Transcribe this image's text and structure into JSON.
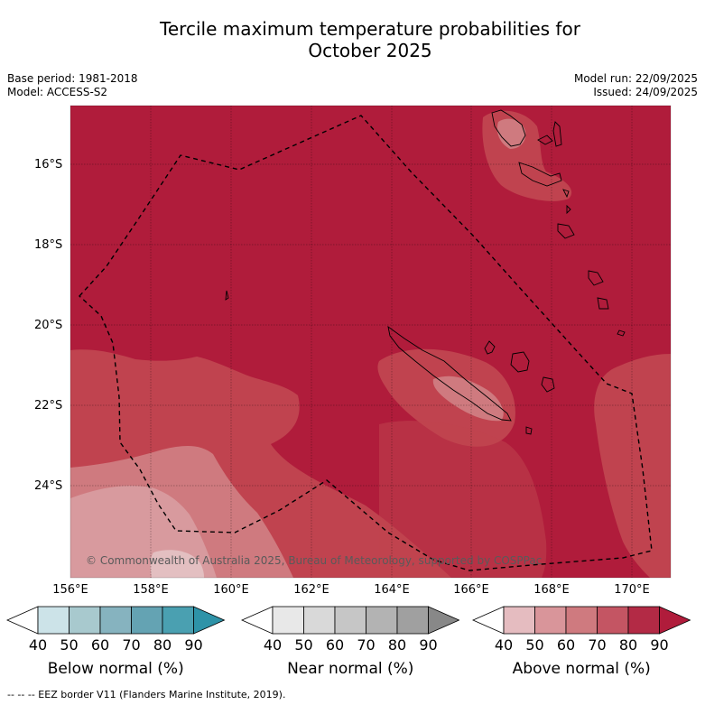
{
  "title": {
    "line1": "Tercile maximum temperature probabilities for",
    "line2": "October 2025"
  },
  "meta": {
    "base_period": "Base period: 1981-2018",
    "model": "Model: ACCESS-S2",
    "model_run": "Model run: 22/09/2025",
    "issued": "Issued: 24/09/2025"
  },
  "map": {
    "lat_labels": [
      "16°S",
      "18°S",
      "20°S",
      "22°S",
      "24°S"
    ],
    "lon_labels": [
      "156°E",
      "158°E",
      "160°E",
      "162°E",
      "164°E",
      "166°E",
      "168°E",
      "170°E"
    ],
    "credit": "© Commonwealth of Australia 2025, Bureau of Meteorology, supported by COSPPac",
    "colors": {
      "dominant": "#b01c3b",
      "band_70": "#c0434f",
      "band_60": "#cf7a7f",
      "band_50": "#d89a9e",
      "band_40": "#e3bfc1",
      "land_outline": "#000000"
    }
  },
  "colorbars": [
    {
      "label": "Below normal (%)",
      "ticks": [
        "40",
        "50",
        "60",
        "70",
        "80",
        "90"
      ],
      "colors": [
        "#ffffff",
        "#cce3e8",
        "#a8c9ce",
        "#86b3bf",
        "#64a3b3",
        "#4aa0b1",
        "#2e93a8"
      ]
    },
    {
      "label": "Near normal (%)",
      "ticks": [
        "40",
        "50",
        "60",
        "70",
        "80",
        "90"
      ],
      "colors": [
        "#ffffff",
        "#e8e8e8",
        "#d9d9d9",
        "#c6c6c6",
        "#b3b3b3",
        "#a0a0a0",
        "#888888"
      ]
    },
    {
      "label": "Above normal (%)",
      "ticks": [
        "40",
        "50",
        "60",
        "70",
        "80",
        "90"
      ],
      "colors": [
        "#ffffff",
        "#e5bcc0",
        "#d9959a",
        "#cf7a7f",
        "#c45563",
        "#b32a45",
        "#b01c3b"
      ]
    }
  ],
  "footnote": "--  --  -- EEZ border V11 (Flanders Marine Institute, 2019)."
}
